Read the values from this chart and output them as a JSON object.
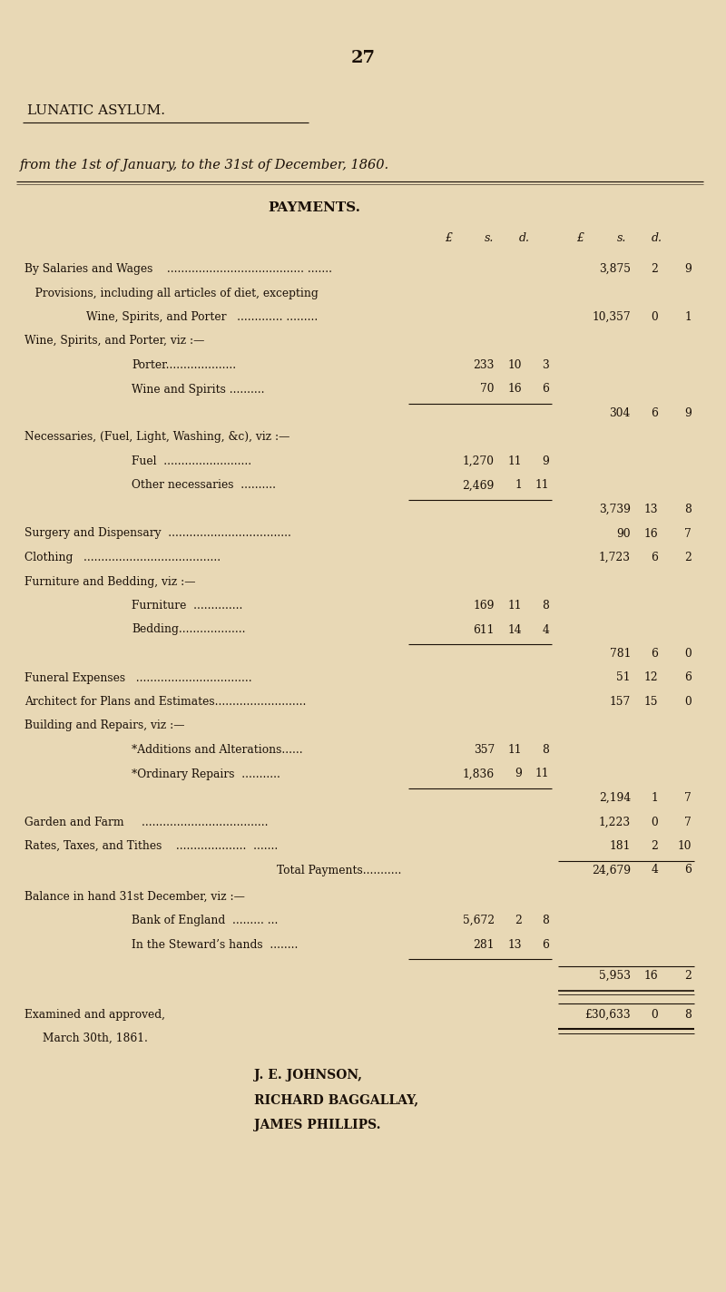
{
  "bg_color": "#e8d8b5",
  "text_color": "#1a1008",
  "page_number": "27",
  "title1": "LUNATIC ASYLUM.",
  "title2": "from the 1st of January, to the 31st of December, 1860.",
  "section": "PAYMENTS.",
  "lines": [
    {
      "indent": 0,
      "text": "By Salaries and Wages    ....................................... .......",
      "mid": "",
      "mid_s": "",
      "mid_d": "",
      "total": "3,875",
      "s": "2",
      "d": "9",
      "type": "normal"
    },
    {
      "indent": 0,
      "text": "   Provisions, including all articles of diet, excepting",
      "mid": "",
      "mid_s": "",
      "mid_d": "",
      "total": "",
      "s": "",
      "d": "",
      "type": "normal"
    },
    {
      "indent": 1,
      "text": "Wine, Spirits, and Porter   ............. .........",
      "mid": "",
      "mid_s": "",
      "mid_d": "",
      "total": "10,357",
      "s": "0",
      "d": "1",
      "type": "normal"
    },
    {
      "indent": 0,
      "text": "Wine, Spirits, and Porter, viz :—",
      "mid": "",
      "mid_s": "",
      "mid_d": "",
      "total": "",
      "s": "",
      "d": "",
      "type": "normal"
    },
    {
      "indent": 2,
      "text": "Porter....................",
      "mid": "233",
      "mid_s": "10",
      "mid_d": "3",
      "total": "",
      "s": "",
      "d": "",
      "type": "normal"
    },
    {
      "indent": 2,
      "text": "Wine and Spirits ..........",
      "mid": "70",
      "mid_s": "16",
      "mid_d": "6",
      "total": "",
      "s": "",
      "d": "",
      "type": "subtotal_line"
    },
    {
      "indent": 0,
      "text": "",
      "mid": "",
      "mid_s": "",
      "mid_d": "",
      "total": "304",
      "s": "6",
      "d": "9",
      "type": "subtotal"
    },
    {
      "indent": 0,
      "text": "Necessaries, (Fuel, Light, Washing, &c), viz :—",
      "mid": "",
      "mid_s": "",
      "mid_d": "",
      "total": "",
      "s": "",
      "d": "",
      "type": "normal"
    },
    {
      "indent": 2,
      "text": "Fuel  .........................",
      "mid": "1,270",
      "mid_s": "11",
      "mid_d": "9",
      "total": "",
      "s": "",
      "d": "",
      "type": "normal"
    },
    {
      "indent": 2,
      "text": "Other necessaries  ..........",
      "mid": "2,469",
      "mid_s": "1",
      "mid_d": "11",
      "total": "",
      "s": "",
      "d": "",
      "type": "subtotal_line"
    },
    {
      "indent": 0,
      "text": "",
      "mid": "",
      "mid_s": "",
      "mid_d": "",
      "total": "3,739",
      "s": "13",
      "d": "8",
      "type": "subtotal"
    },
    {
      "indent": 0,
      "text": "Surgery and Dispensary  ...................................",
      "mid": "",
      "mid_s": "",
      "mid_d": "",
      "total": "90",
      "s": "16",
      "d": "7",
      "type": "normal"
    },
    {
      "indent": 0,
      "text": "Clothing   .......................................",
      "mid": "",
      "mid_s": "",
      "mid_d": "",
      "total": "1,723",
      "s": "6",
      "d": "2",
      "type": "normal"
    },
    {
      "indent": 0,
      "text": "Furniture and Bedding, viz :—",
      "mid": "",
      "mid_s": "",
      "mid_d": "",
      "total": "",
      "s": "",
      "d": "",
      "type": "normal"
    },
    {
      "indent": 2,
      "text": "Furniture  ..............",
      "mid": "169",
      "mid_s": "11",
      "mid_d": "8",
      "total": "",
      "s": "",
      "d": "",
      "type": "normal"
    },
    {
      "indent": 2,
      "text": "Bedding...................",
      "mid": "611",
      "mid_s": "14",
      "mid_d": "4",
      "total": "",
      "s": "",
      "d": "",
      "type": "subtotal_line"
    },
    {
      "indent": 0,
      "text": "",
      "mid": "",
      "mid_s": "",
      "mid_d": "",
      "total": "781",
      "s": "6",
      "d": "0",
      "type": "subtotal"
    },
    {
      "indent": 0,
      "text": "Funeral Expenses   .................................",
      "mid": "",
      "mid_s": "",
      "mid_d": "",
      "total": "51",
      "s": "12",
      "d": "6",
      "type": "normal"
    },
    {
      "indent": 0,
      "text": "Architect for Plans and Estimates..........................",
      "mid": "",
      "mid_s": "",
      "mid_d": "",
      "total": "157",
      "s": "15",
      "d": "0",
      "type": "normal"
    },
    {
      "indent": 0,
      "text": "Building and Repairs, viz :—",
      "mid": "",
      "mid_s": "",
      "mid_d": "",
      "total": "",
      "s": "",
      "d": "",
      "type": "normal"
    },
    {
      "indent": 2,
      "text": "*Additions and Alterations......",
      "mid": "357",
      "mid_s": "11",
      "mid_d": "8",
      "total": "",
      "s": "",
      "d": "",
      "type": "normal"
    },
    {
      "indent": 2,
      "text": "*Ordinary Repairs  ...........",
      "mid": "1,836",
      "mid_s": "9",
      "mid_d": "11",
      "total": "",
      "s": "",
      "d": "",
      "type": "subtotal_line"
    },
    {
      "indent": 0,
      "text": "",
      "mid": "",
      "mid_s": "",
      "mid_d": "",
      "total": "2,194",
      "s": "1",
      "d": "7",
      "type": "subtotal"
    },
    {
      "indent": 0,
      "text": "Garden and Farm     ....................................",
      "mid": "",
      "mid_s": "",
      "mid_d": "",
      "total": "1,223",
      "s": "0",
      "d": "7",
      "type": "normal"
    },
    {
      "indent": 0,
      "text": "Rates, Taxes, and Tithes    ....................  .......",
      "mid": "",
      "mid_s": "",
      "mid_d": "",
      "total": "181",
      "s": "2",
      "d": "10",
      "type": "normal"
    }
  ],
  "examined_left": "Examined and approved,",
  "march": "   March 30th, 1861.",
  "signatories": [
    "J. E. JOHNSON,",
    "RICHARD BAGGALLAY,",
    "JAMES PHILLIPS."
  ]
}
